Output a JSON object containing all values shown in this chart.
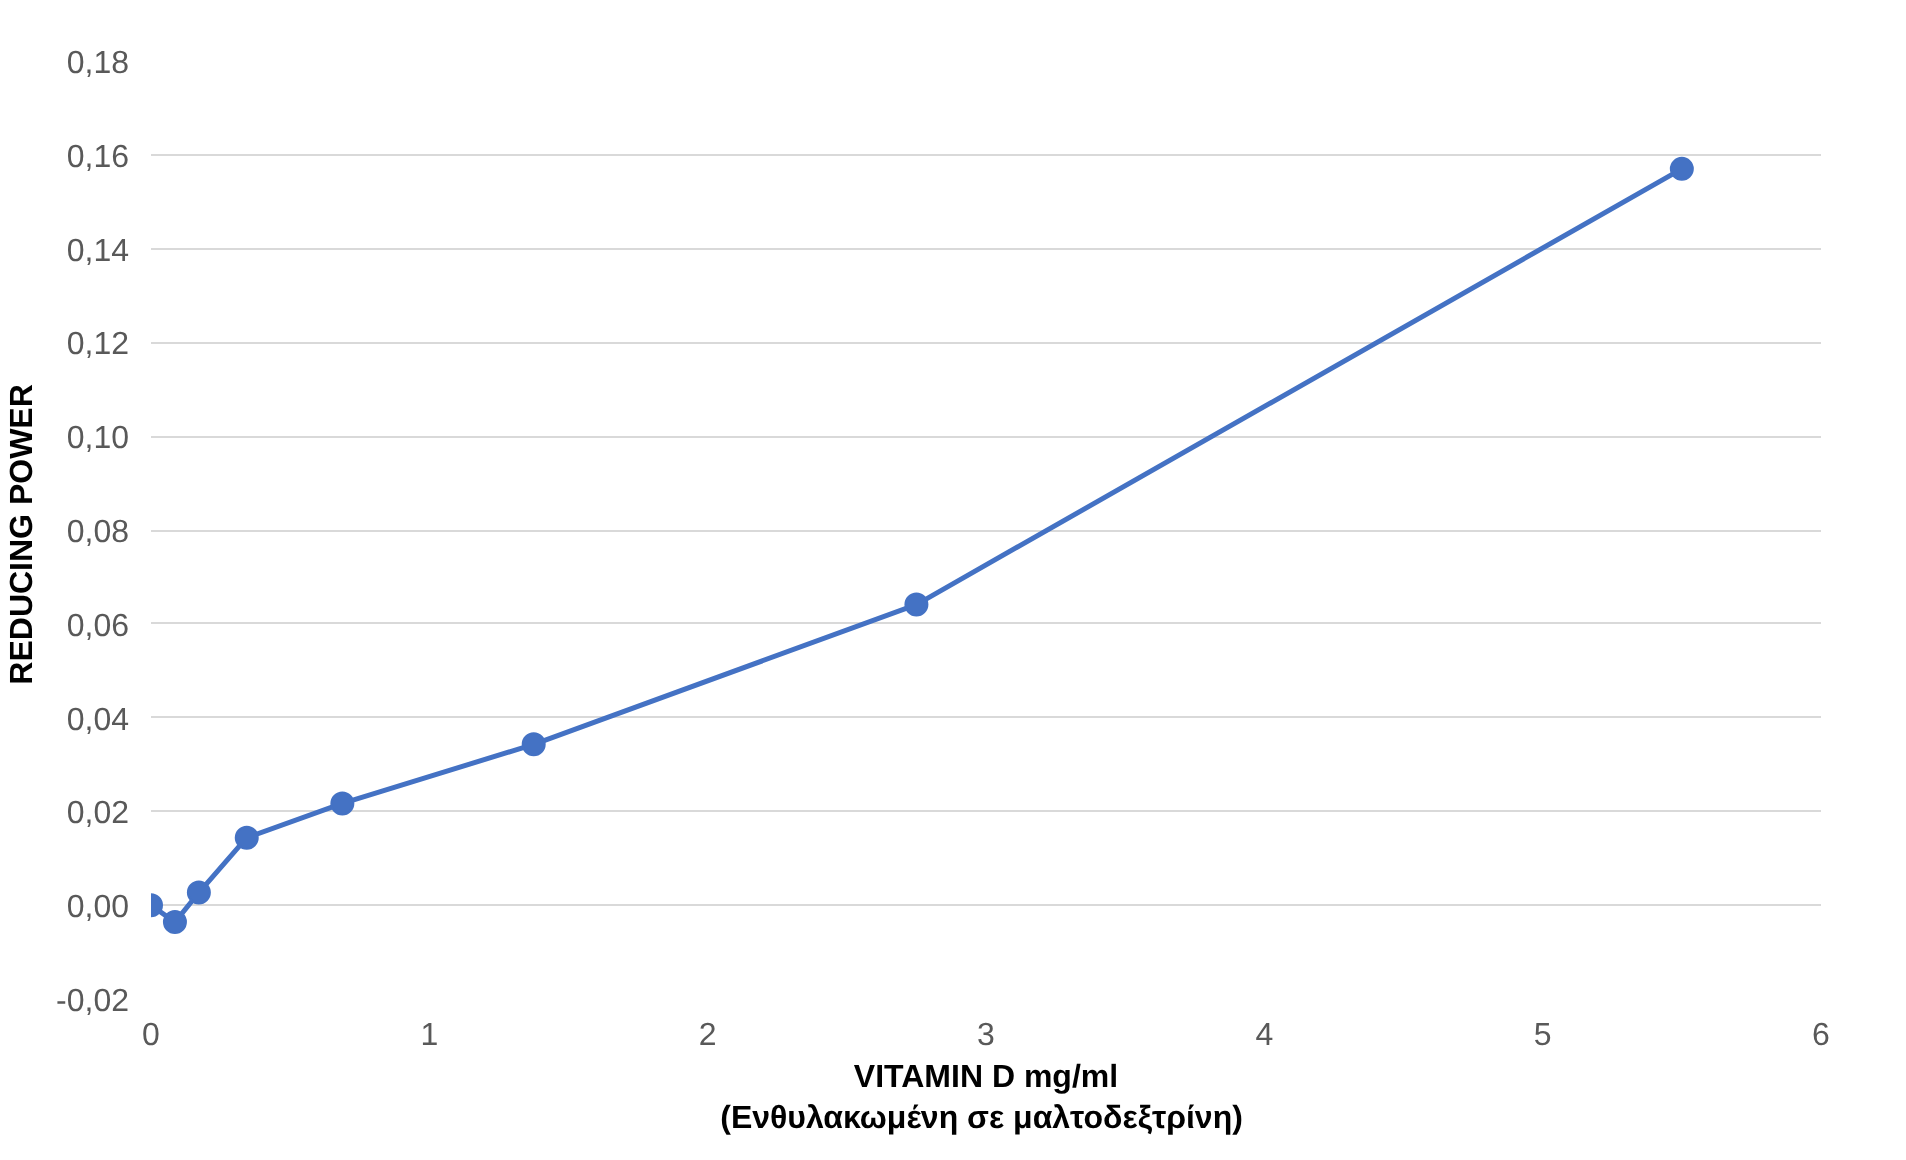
{
  "chart_data": {
    "type": "line",
    "xlabel": "VITAMIN D mg/ml\n(Ενθυλακωμένη  σε μαλτοδεξτρίνη)",
    "ylabel": "REDUCING  POWER",
    "x": [
      0,
      0.086,
      0.172,
      0.344,
      0.6875,
      1.375,
      2.75,
      5.5
    ],
    "series": [
      {
        "color": "#4472c4",
        "values": [
          0.0,
          -0.0036,
          0.0027,
          0.0144,
          0.0217,
          0.0343,
          0.0641,
          0.157
        ]
      }
    ],
    "xlim": [
      0,
      6
    ],
    "xticks": [
      0,
      1,
      2,
      3,
      4,
      5,
      6
    ],
    "ylim": [
      -0.02,
      0.18
    ],
    "yticks": [
      {
        "value": -0.02,
        "label": "-0,02"
      },
      {
        "value": 0.0,
        "label": "0,00"
      },
      {
        "value": 0.02,
        "label": "0,02"
      },
      {
        "value": 0.04,
        "label": "0,04"
      },
      {
        "value": 0.06,
        "label": "0,06"
      },
      {
        "value": 0.08,
        "label": "0,08"
      },
      {
        "value": 0.1,
        "label": "0,10"
      },
      {
        "value": 0.12,
        "label": "0,12"
      },
      {
        "value": 0.14,
        "label": "0,14"
      },
      {
        "value": 0.16,
        "label": "0,16"
      },
      {
        "value": 0.18,
        "label": "0,18"
      }
    ],
    "grid": "y",
    "marker": "circle",
    "line_style": "solid"
  }
}
